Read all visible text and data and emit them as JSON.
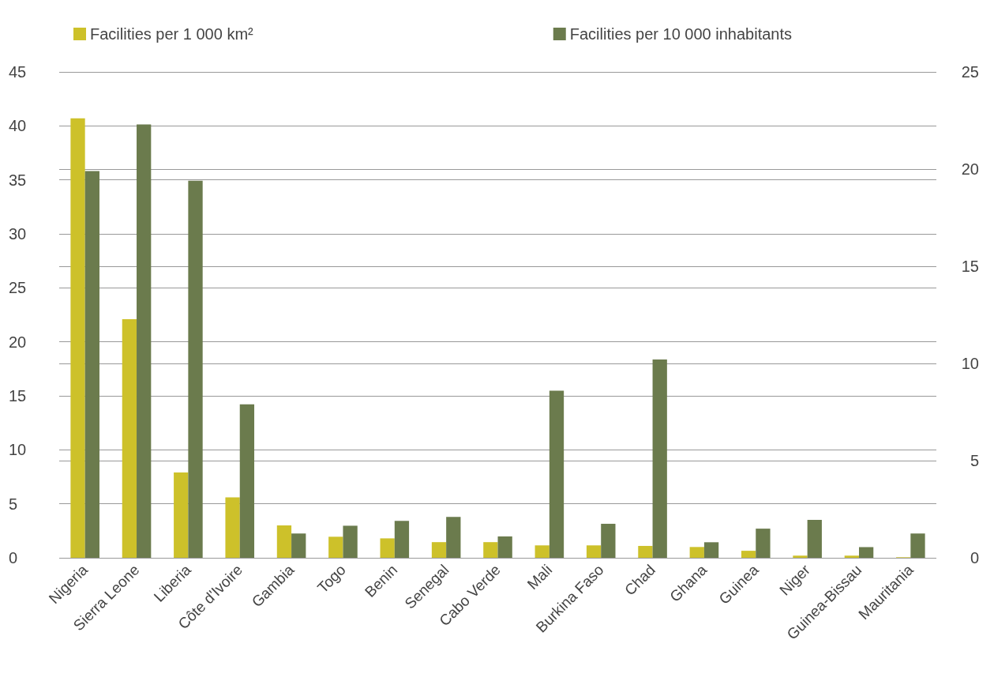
{
  "chart_data": {
    "type": "bar",
    "categories": [
      "Nigeria",
      "Sierra Leone",
      "Liberia",
      "Côte d'Ivoire",
      "Gambia",
      "Togo",
      "Benin",
      "Senegal",
      "Cabo Verde",
      "Mali",
      "Burkina Faso",
      "Chad",
      "Ghana",
      "Guinea",
      "Niger",
      "Guinea-Bissau",
      "Mauritania"
    ],
    "series": [
      {
        "name": "Facilities per 1 000 km²",
        "color": "#cdc12a",
        "values": [
          40.7,
          22.1,
          7.9,
          5.6,
          3.0,
          1.95,
          1.8,
          1.45,
          1.45,
          1.15,
          1.15,
          1.1,
          1.0,
          0.65,
          0.2,
          0.2,
          0.05
        ]
      },
      {
        "name": "Facilities per 10 000 inhabitants",
        "color": "#6b7b4d",
        "axis": "y2",
        "values": [
          19.9,
          22.3,
          19.4,
          7.9,
          1.25,
          1.65,
          1.9,
          2.1,
          1.1,
          8.6,
          1.75,
          10.2,
          0.8,
          1.5,
          1.95,
          0.55,
          1.25
        ]
      }
    ],
    "ylim": [
      0,
      45
    ],
    "yticks": [
      0,
      5,
      10,
      15,
      20,
      25,
      30,
      35,
      40,
      45
    ],
    "y2lim": [
      0,
      25
    ],
    "y2ticks": [
      0,
      5,
      10,
      15,
      20,
      25
    ],
    "grid": true,
    "legend": "top"
  }
}
